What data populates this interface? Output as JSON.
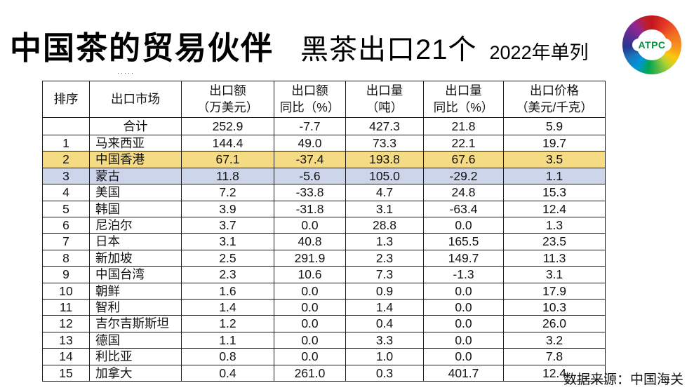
{
  "title": {
    "main": "中国茶的贸易伙伴",
    "sub": "黑茶出口21个",
    "note": "2022年单列"
  },
  "logo": {
    "text": "ATPC"
  },
  "artifact": {
    "text": "·····"
  },
  "source": "数据来源：中国海关",
  "colors": {
    "highlight_yellow": "#F5DB84",
    "highlight_blue": "#CDD5EA",
    "logo_text_green": "#00913d"
  },
  "table": {
    "headers": [
      {
        "lines": [
          "排序"
        ]
      },
      {
        "lines": [
          "出口市场"
        ]
      },
      {
        "lines": [
          "出口额",
          "（万美元）"
        ]
      },
      {
        "lines": [
          "出口额",
          "同比（%）"
        ]
      },
      {
        "lines": [
          "出口量",
          "（吨）"
        ]
      },
      {
        "lines": [
          "出口量",
          "同比（%）"
        ]
      },
      {
        "lines": [
          "出口价格",
          "（美元/千克）"
        ]
      }
    ],
    "rows": [
      {
        "rank": "",
        "market": "合计",
        "values": [
          "252.9",
          "-7.7",
          "427.3",
          "21.8",
          "5.9"
        ],
        "highlight": "none",
        "total": true
      },
      {
        "rank": "1",
        "market": "马来西亚",
        "values": [
          "144.4",
          "49.0",
          "73.3",
          "22.1",
          "19.7"
        ],
        "highlight": "none"
      },
      {
        "rank": "2",
        "market": "中国香港",
        "values": [
          "67.1",
          "-37.4",
          "193.8",
          "67.6",
          "3.5"
        ],
        "highlight": "yellow"
      },
      {
        "rank": "3",
        "market": "蒙古",
        "values": [
          "11.8",
          "-5.6",
          "105.0",
          "-29.2",
          "1.1"
        ],
        "highlight": "blue"
      },
      {
        "rank": "4",
        "market": "美国",
        "values": [
          "7.2",
          "-33.8",
          "4.7",
          "24.8",
          "15.3"
        ],
        "highlight": "none"
      },
      {
        "rank": "5",
        "market": "韩国",
        "values": [
          "3.9",
          "-31.8",
          "3.1",
          "-63.4",
          "12.4"
        ],
        "highlight": "none"
      },
      {
        "rank": "6",
        "market": "尼泊尔",
        "values": [
          "3.7",
          "0.0",
          "28.8",
          "0.0",
          "1.3"
        ],
        "highlight": "none"
      },
      {
        "rank": "7",
        "market": "日本",
        "values": [
          "3.1",
          "40.8",
          "1.3",
          "165.5",
          "23.5"
        ],
        "highlight": "none"
      },
      {
        "rank": "8",
        "market": "新加坡",
        "values": [
          "2.5",
          "291.9",
          "2.3",
          "149.7",
          "11.3"
        ],
        "highlight": "none"
      },
      {
        "rank": "9",
        "market": "中国台湾",
        "values": [
          "2.3",
          "10.6",
          "7.3",
          "-1.3",
          "3.1"
        ],
        "highlight": "none"
      },
      {
        "rank": "10",
        "market": "朝鲜",
        "values": [
          "1.6",
          "0.0",
          "0.9",
          "0.0",
          "17.9"
        ],
        "highlight": "none"
      },
      {
        "rank": "11",
        "market": "智利",
        "values": [
          "1.4",
          "0.0",
          "1.4",
          "0.0",
          "10.3"
        ],
        "highlight": "none"
      },
      {
        "rank": "12",
        "market": "吉尔吉斯斯坦",
        "values": [
          "1.2",
          "0.0",
          "0.4",
          "0.0",
          "26.0"
        ],
        "highlight": "none"
      },
      {
        "rank": "13",
        "market": "德国",
        "values": [
          "1.1",
          "0.0",
          "3.3",
          "0.0",
          "3.2"
        ],
        "highlight": "none"
      },
      {
        "rank": "14",
        "market": "利比亚",
        "values": [
          "0.8",
          "0.0",
          "1.0",
          "0.0",
          "7.8"
        ],
        "highlight": "none"
      },
      {
        "rank": "15",
        "market": "加拿大",
        "values": [
          "0.4",
          "261.0",
          "0.3",
          "401.7",
          "12.4"
        ],
        "highlight": "none"
      }
    ]
  }
}
